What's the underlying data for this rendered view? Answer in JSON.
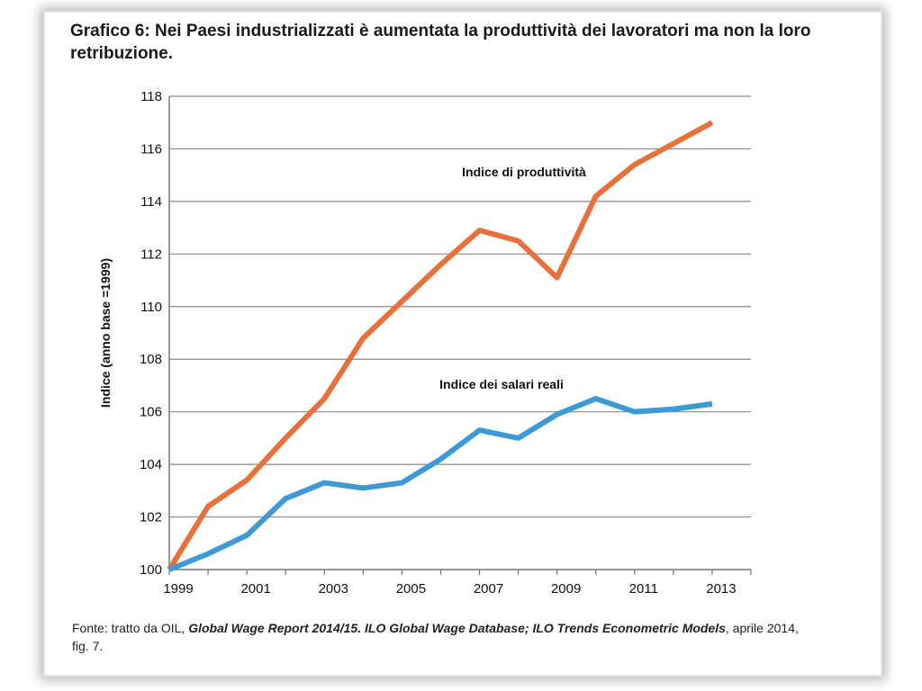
{
  "figure": {
    "title": "Grafico 6: Nei Paesi industrializzati è aumentata la produttività dei lavoratori ma non la loro retribuzione.",
    "source": {
      "prefix": "Fonte: tratto da OIL, ",
      "report": "Global Wage Report 2014/15",
      "sep1": ". ",
      "database": "ILO Global Wage Database",
      "sep2": "; ",
      "models": "ILO Trends Econometric Models",
      "suffix": ", aprile 2014, fig. 7."
    }
  },
  "chart_data": {
    "type": "line",
    "title": "Grafico 6: Nei Paesi industrializzati è aumentata la produttività dei lavoratori ma non la loro retribuzione.",
    "xlabel": "",
    "ylabel": "Indice (anno base =1999)",
    "ylim": [
      100,
      118
    ],
    "yticks": [
      100,
      102,
      104,
      106,
      108,
      110,
      112,
      114,
      116,
      118
    ],
    "xlim": [
      1999,
      2014
    ],
    "xticks": [
      1999,
      2001,
      2003,
      2005,
      2007,
      2009,
      2011,
      2013
    ],
    "grid": true,
    "x": [
      1999,
      2000,
      2001,
      2002,
      2003,
      2004,
      2005,
      2006,
      2007,
      2008,
      2009,
      2010,
      2011,
      2012,
      2013
    ],
    "series": [
      {
        "name": "Indice di produttività",
        "color": "#e8703a",
        "values": [
          100.0,
          102.4,
          103.4,
          105.0,
          106.5,
          108.8,
          110.2,
          111.6,
          112.9,
          112.5,
          111.1,
          114.2,
          115.4,
          116.2,
          117.0
        ]
      },
      {
        "name": "Indice dei salari reali",
        "color": "#3c9ad6",
        "values": [
          100.0,
          100.6,
          101.3,
          102.7,
          103.3,
          103.1,
          103.3,
          104.2,
          105.3,
          105.0,
          105.9,
          106.5,
          106.0,
          106.1,
          106.3
        ]
      }
    ]
  }
}
